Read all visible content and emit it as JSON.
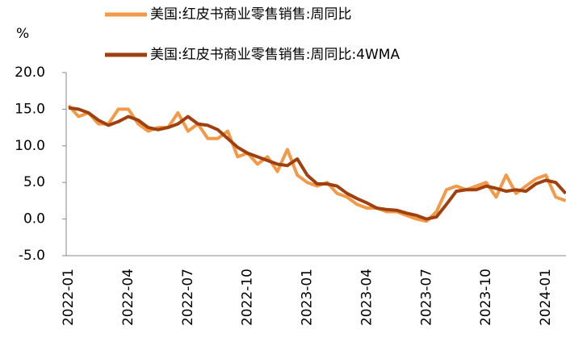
{
  "chart_data": {
    "type": "line",
    "y_label": "%",
    "categories": [
      "2022-01",
      null,
      null,
      null,
      null,
      null,
      "2022-04",
      null,
      null,
      null,
      null,
      null,
      "2022-07",
      null,
      null,
      null,
      null,
      null,
      "2022-10",
      null,
      null,
      null,
      null,
      null,
      "2023-01",
      null,
      null,
      null,
      null,
      null,
      "2023-04",
      null,
      null,
      null,
      null,
      null,
      "2023-07",
      null,
      null,
      null,
      null,
      null,
      "2023-10",
      null,
      null,
      null,
      null,
      null,
      "2024-01",
      null,
      null
    ],
    "series": [
      {
        "name": "美国:红皮书商业零售销售:周同比",
        "color": "#f39a4a",
        "values": [
          15.5,
          14,
          14.5,
          13,
          13,
          15,
          15,
          13,
          12,
          12.5,
          12.5,
          14.5,
          12,
          13,
          11,
          11,
          12,
          8.5,
          9,
          7.5,
          8.5,
          6.5,
          9.5,
          6,
          5,
          4.5,
          5,
          3.5,
          3,
          2,
          1.5,
          1.5,
          1,
          1,
          0.5,
          0,
          -0.3,
          1,
          4,
          4.5,
          4,
          4.5,
          5,
          3,
          6,
          3.5,
          4.5,
          5.5,
          6,
          3,
          2.5
        ]
      },
      {
        "name": "美国:红皮书商业零售销售:周同比:4WMA",
        "color": "#a0400e",
        "values": [
          15.2,
          15,
          14.5,
          13.5,
          12.8,
          13.3,
          14,
          13.5,
          12.5,
          12.2,
          12.5,
          13,
          14,
          13,
          12.8,
          12.2,
          11,
          9.8,
          9,
          8.5,
          8,
          7.5,
          7.3,
          8.2,
          6,
          4.8,
          4.8,
          4.5,
          3.5,
          2.8,
          2.2,
          1.5,
          1.3,
          1.2,
          0.8,
          0.5,
          0,
          0.3,
          2,
          3.8,
          4,
          4,
          4.5,
          4.2,
          3.8,
          4,
          3.8,
          4.8,
          5.3,
          5,
          3.5
        ]
      }
    ],
    "ylim": [
      -5,
      20
    ],
    "yticks": [
      {
        "value": -5,
        "label": "-5.0"
      },
      {
        "value": 0,
        "label": "0.0"
      },
      {
        "value": 5,
        "label": "5.0"
      },
      {
        "value": 10,
        "label": "10.0"
      },
      {
        "value": 15,
        "label": "15.0"
      },
      {
        "value": 20,
        "label": "20.0"
      }
    ]
  }
}
